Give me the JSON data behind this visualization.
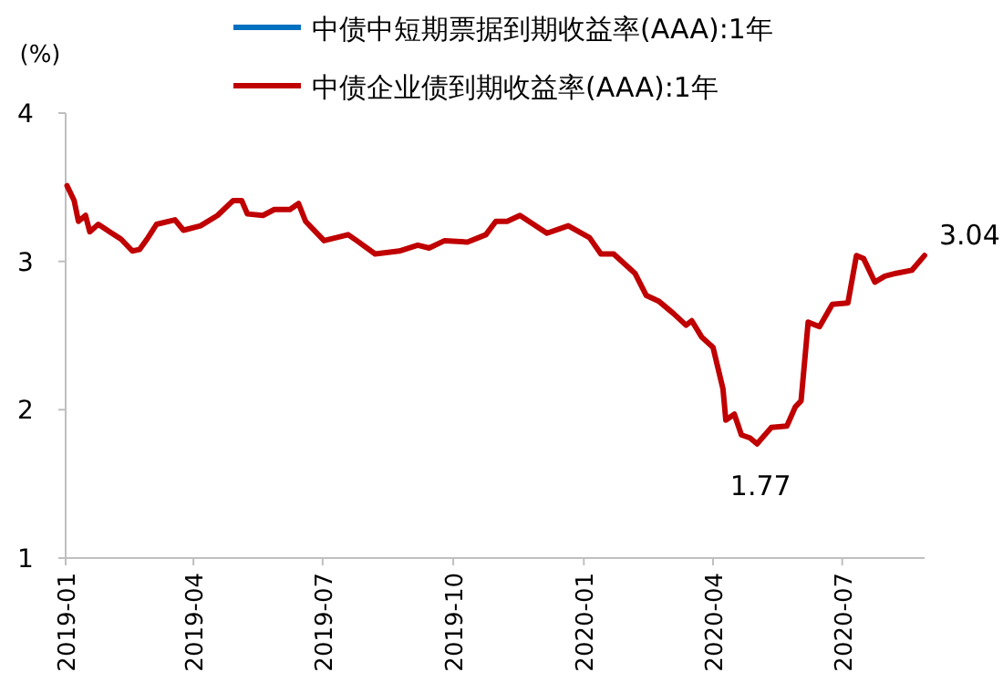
{
  "chart_data": {
    "type": "line",
    "ylabel": "(%)",
    "legend": "top",
    "grid": false,
    "marker": "none",
    "line_style": "solid",
    "xlim": [
      "2019-01-01",
      "2020-08-28"
    ],
    "ylim": [
      1,
      4
    ],
    "yticks": [
      1,
      2,
      3,
      4
    ],
    "xticks": [
      {
        "value": "2019-01-01",
        "label": "2019-01"
      },
      {
        "value": "2019-04-01",
        "label": "2019-04"
      },
      {
        "value": "2019-07-01",
        "label": "2019-07"
      },
      {
        "value": "2019-10-01",
        "label": "2019-10"
      },
      {
        "value": "2020-01-01",
        "label": "2020-01"
      },
      {
        "value": "2020-04-01",
        "label": "2020-04"
      },
      {
        "value": "2020-07-01",
        "label": "2020-07"
      }
    ],
    "x": [
      "2019-01-02",
      "2019-01-07",
      "2019-01-10",
      "2019-01-15",
      "2019-01-18",
      "2019-01-24",
      "2019-02-01",
      "2019-02-09",
      "2019-02-17",
      "2019-02-22",
      "2019-02-28",
      "2019-03-06",
      "2019-03-19",
      "2019-03-25",
      "2019-04-06",
      "2019-04-18",
      "2019-04-29",
      "2019-05-05",
      "2019-05-09",
      "2019-05-20",
      "2019-05-28",
      "2019-06-08",
      "2019-06-14",
      "2019-06-19",
      "2019-07-02",
      "2019-07-19",
      "2019-07-25",
      "2019-08-07",
      "2019-08-24",
      "2019-09-06",
      "2019-09-14",
      "2019-09-25",
      "2019-10-11",
      "2019-10-24",
      "2019-10-31",
      "2019-11-08",
      "2019-11-17",
      "2019-12-06",
      "2019-12-21",
      "2020-01-05",
      "2020-01-13",
      "2020-01-22",
      "2020-02-06",
      "2020-02-14",
      "2020-02-23",
      "2020-03-04",
      "2020-03-13",
      "2020-03-17",
      "2020-03-24",
      "2020-04-01",
      "2020-04-08",
      "2020-04-10",
      "2020-04-16",
      "2020-04-21",
      "2020-04-27",
      "2020-05-02",
      "2020-05-12",
      "2020-05-23",
      "2020-05-29",
      "2020-06-02",
      "2020-06-07",
      "2020-06-15",
      "2020-06-24",
      "2020-07-05",
      "2020-07-11",
      "2020-07-16",
      "2020-07-24",
      "2020-07-31",
      "2020-08-08",
      "2020-08-19",
      "2020-08-28"
    ],
    "series": [
      {
        "name": "中债中短期票据到期收益率(AAA):1年",
        "color": "#0070c0",
        "values": [
          null,
          null,
          null,
          null,
          null,
          null,
          null,
          null,
          null,
          null,
          null,
          null,
          null,
          null,
          null,
          null,
          null,
          null,
          null,
          null,
          null,
          null,
          null,
          null,
          null,
          null,
          null,
          null,
          null,
          null,
          null,
          null,
          null,
          null,
          null,
          null,
          null,
          null,
          null,
          null,
          null,
          null,
          null,
          null,
          null,
          null,
          null,
          null,
          null,
          null,
          null,
          null,
          null,
          null,
          null,
          null,
          null,
          null,
          null,
          null,
          null,
          null,
          null,
          null,
          null,
          null,
          null,
          null,
          null,
          null,
          null
        ]
      },
      {
        "name": "中债企业债到期收益率(AAA):1年",
        "color": "#c00000",
        "values": [
          3.51,
          3.41,
          3.27,
          3.31,
          3.2,
          3.25,
          3.2,
          3.15,
          3.07,
          3.08,
          3.16,
          3.25,
          3.28,
          3.21,
          3.24,
          3.31,
          3.41,
          3.41,
          3.32,
          3.31,
          3.35,
          3.35,
          3.39,
          3.27,
          3.14,
          3.18,
          3.14,
          3.05,
          3.07,
          3.11,
          3.09,
          3.14,
          3.13,
          3.18,
          3.27,
          3.27,
          3.31,
          3.19,
          3.24,
          3.16,
          3.05,
          3.05,
          2.92,
          2.77,
          2.73,
          2.65,
          2.57,
          2.6,
          2.49,
          2.42,
          2.14,
          1.93,
          1.97,
          1.83,
          1.81,
          1.77,
          1.88,
          1.89,
          2.02,
          2.06,
          2.59,
          2.56,
          2.71,
          2.72,
          3.04,
          3.02,
          2.86,
          2.9,
          2.92,
          2.94,
          3.04
        ]
      }
    ],
    "annotations": [
      {
        "text": "1.77",
        "x": "2020-05-02",
        "y": 1.77
      },
      {
        "text": "3.04",
        "x": "2020-08-28",
        "y": 3.04
      }
    ]
  }
}
